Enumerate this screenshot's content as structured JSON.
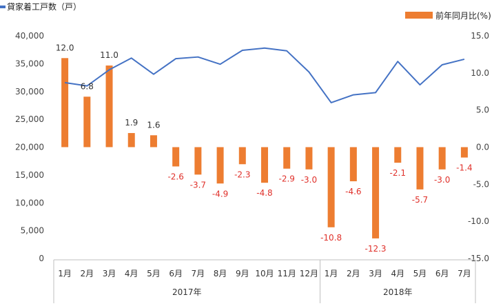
{
  "chart_data": {
    "type": "bar+line",
    "categories": [
      "1月",
      "2月",
      "3月",
      "4月",
      "5月",
      "6月",
      "7月",
      "8月",
      "9月",
      "10月",
      "11月",
      "12月",
      "1月",
      "2月",
      "3月",
      "4月",
      "5月",
      "6月",
      "7月"
    ],
    "year_groups": [
      {
        "label": "2017年",
        "count": 12
      },
      {
        "label": "2018年",
        "count": 7
      }
    ],
    "series": [
      {
        "name": "貸家着工戸数（戸）",
        "type": "line",
        "axis": "left",
        "color": "#4472c4",
        "values": [
          31600,
          31000,
          33900,
          36000,
          33100,
          35900,
          36200,
          34900,
          37400,
          37800,
          37300,
          33500,
          28000,
          29400,
          29800,
          35400,
          31200,
          34800,
          35800
        ]
      },
      {
        "name": "前年同月比(%)",
        "type": "bar",
        "axis": "right",
        "color": "#ed7d31",
        "values": [
          12.0,
          6.8,
          11.0,
          1.9,
          1.6,
          -2.6,
          -3.7,
          -4.9,
          -2.3,
          -4.8,
          -2.9,
          -3.0,
          -10.8,
          -4.6,
          -12.3,
          -2.1,
          -5.7,
          -3.0,
          -1.4
        ],
        "data_labels": [
          "12.0",
          "6.8",
          "11.0",
          "1.9",
          "1.6",
          "-2.6",
          "-3.7",
          "-4.9",
          "-2.3",
          "-4.8",
          "-2.9",
          "-3.0",
          "-10.8",
          "-4.6",
          "-12.3",
          "-2.1",
          "-5.7",
          "-3.0",
          "-1.4"
        ]
      }
    ],
    "left_axis": {
      "ylim": [
        0,
        40000
      ],
      "ticks": [
        0,
        5000,
        10000,
        15000,
        20000,
        25000,
        30000,
        35000,
        40000
      ],
      "tick_labels": [
        "0",
        "5,000",
        "10,000",
        "15,000",
        "20,000",
        "25,000",
        "30,000",
        "35,000",
        "40,000"
      ]
    },
    "right_axis": {
      "ylim": [
        -15,
        15
      ],
      "ticks": [
        15,
        10,
        5,
        0,
        -5,
        -10,
        -15
      ],
      "tick_labels": [
        "15.0",
        "10.0",
        "5.0",
        "0.0",
        "-5.0",
        "-10.0",
        "-15.0"
      ]
    },
    "legend": {
      "line_label": "貸家着工戸数（戸）",
      "bar_label": "前年同月比(%)"
    },
    "positive_label_color": "#333333",
    "negative_label_color": "#e0302a"
  }
}
